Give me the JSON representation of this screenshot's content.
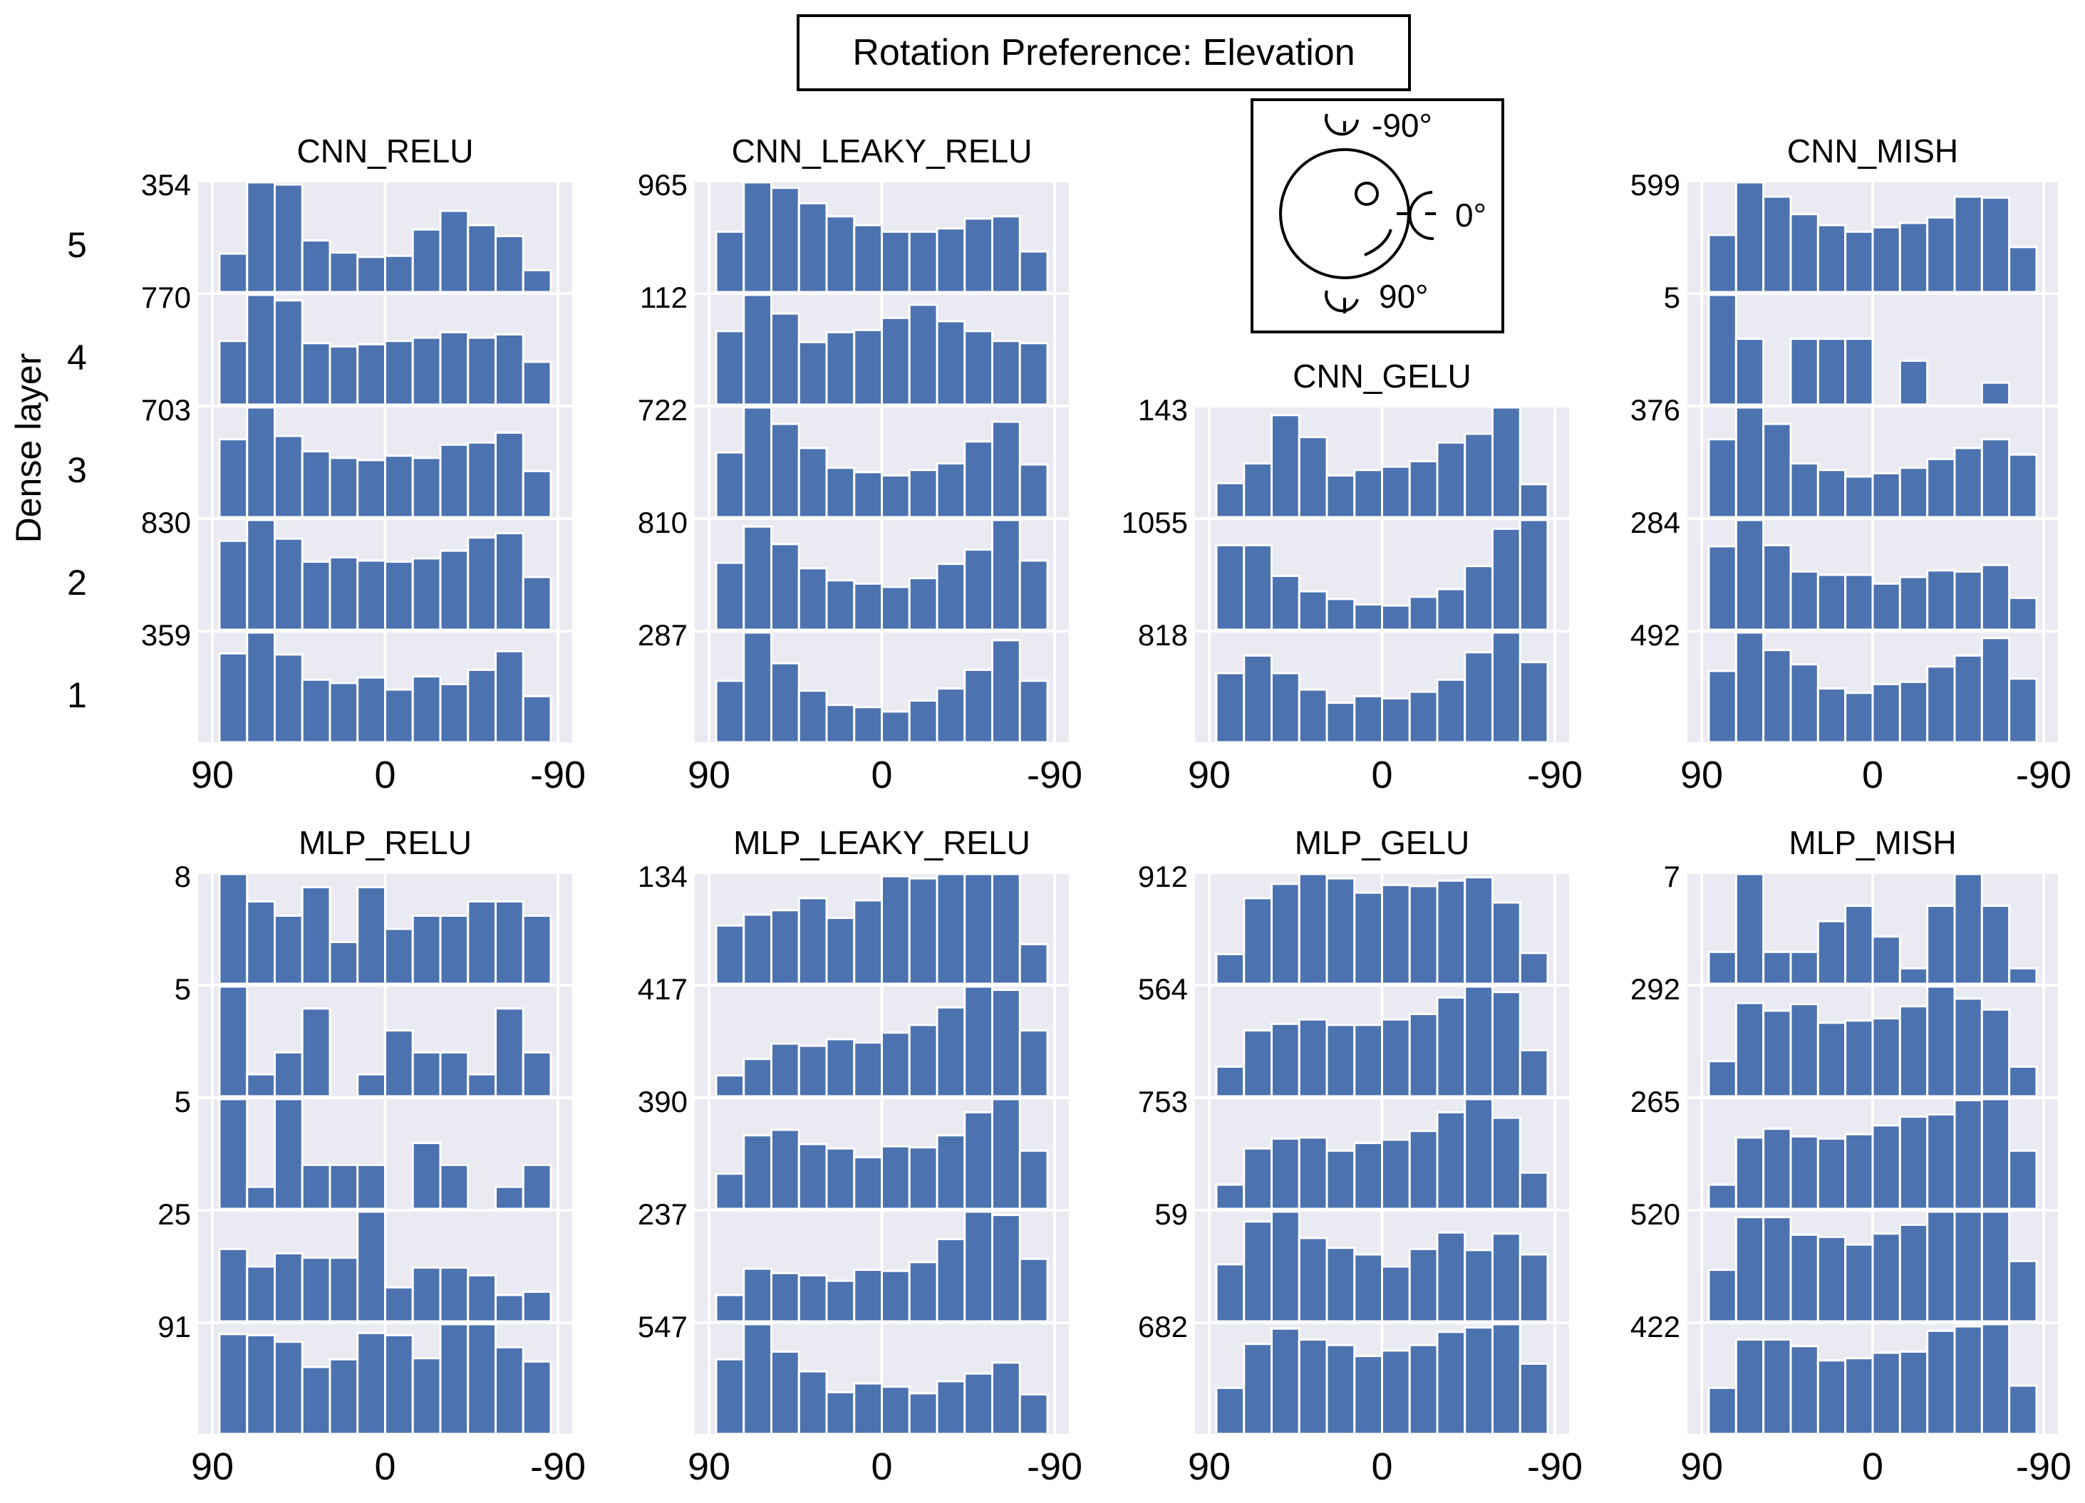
{
  "title": "Rotation Preference: Elevation",
  "y_axis_label": "Dense layer",
  "layer_labels": [
    "5",
    "4",
    "3",
    "2",
    "1"
  ],
  "x_ticks": [
    "90",
    "0",
    "-90"
  ],
  "inset": {
    "labels": [
      "-90°",
      "0°",
      "90°"
    ]
  },
  "colors": {
    "bar": "#4c72b0",
    "panel_bg": "#eaeaf2",
    "grid": "#ffffff"
  },
  "chart_data": [
    {
      "type": "bar",
      "title": "CNN_RELU",
      "xlim": [
        90,
        -90
      ],
      "tick_labels": [
        "354",
        "770",
        "703",
        "830",
        "359"
      ],
      "layers": [
        [
          0.35,
          1.0,
          0.98,
          0.47,
          0.36,
          0.32,
          0.33,
          0.57,
          0.74,
          0.61,
          0.51,
          0.2
        ],
        [
          0.58,
          1.0,
          0.95,
          0.56,
          0.53,
          0.55,
          0.58,
          0.61,
          0.66,
          0.61,
          0.64,
          0.39
        ],
        [
          0.71,
          1.0,
          0.74,
          0.6,
          0.54,
          0.52,
          0.56,
          0.54,
          0.66,
          0.68,
          0.77,
          0.42
        ],
        [
          0.81,
          1.0,
          0.83,
          0.62,
          0.66,
          0.63,
          0.62,
          0.65,
          0.72,
          0.84,
          0.88,
          0.48
        ],
        [
          0.81,
          1.0,
          0.8,
          0.57,
          0.54,
          0.59,
          0.48,
          0.6,
          0.53,
          0.66,
          0.83,
          0.42
        ]
      ]
    },
    {
      "type": "bar",
      "title": "CNN_LEAKY_RELU",
      "xlim": [
        90,
        -90
      ],
      "tick_labels": [
        "965",
        "112",
        "722",
        "810",
        "287"
      ],
      "layers": [
        [
          0.55,
          1.0,
          0.95,
          0.81,
          0.69,
          0.61,
          0.55,
          0.55,
          0.58,
          0.67,
          0.69,
          0.37
        ],
        [
          0.67,
          1.0,
          0.83,
          0.57,
          0.66,
          0.68,
          0.79,
          0.91,
          0.76,
          0.67,
          0.58,
          0.56
        ],
        [
          0.59,
          1.0,
          0.85,
          0.63,
          0.45,
          0.41,
          0.38,
          0.43,
          0.49,
          0.69,
          0.87,
          0.48
        ],
        [
          0.61,
          0.94,
          0.78,
          0.56,
          0.45,
          0.42,
          0.39,
          0.47,
          0.6,
          0.73,
          1.0,
          0.63
        ],
        [
          0.56,
          1.0,
          0.72,
          0.47,
          0.34,
          0.32,
          0.28,
          0.38,
          0.49,
          0.66,
          0.93,
          0.56
        ]
      ]
    },
    {
      "type": "bar",
      "title": "CNN_GELU",
      "xlim": [
        90,
        -90
      ],
      "tick_labels": [
        "143",
        "1055",
        "818"
      ],
      "layers": [
        [
          0.31,
          0.49,
          0.93,
          0.73,
          0.38,
          0.43,
          0.46,
          0.51,
          0.68,
          0.76,
          1.0,
          0.3
        ],
        [
          0.77,
          0.77,
          0.49,
          0.35,
          0.28,
          0.23,
          0.22,
          0.3,
          0.37,
          0.58,
          0.92,
          1.0
        ],
        [
          0.63,
          0.79,
          0.63,
          0.48,
          0.36,
          0.42,
          0.4,
          0.46,
          0.57,
          0.82,
          1.0,
          0.73
        ]
      ]
    },
    {
      "type": "bar",
      "title": "CNN_MISH",
      "xlim": [
        90,
        -90
      ],
      "tick_labels": [
        "599",
        "5",
        "376",
        "284",
        "492"
      ],
      "layers": [
        [
          0.52,
          1.0,
          0.87,
          0.71,
          0.61,
          0.55,
          0.59,
          0.63,
          0.68,
          0.87,
          0.86,
          0.41
        ],
        [
          1.0,
          0.6,
          0.0,
          0.6,
          0.6,
          0.6,
          0.0,
          0.4,
          0.0,
          0.0,
          0.2,
          0.0
        ],
        [
          0.71,
          1.0,
          0.85,
          0.49,
          0.43,
          0.37,
          0.4,
          0.45,
          0.53,
          0.63,
          0.71,
          0.57
        ],
        [
          0.76,
          1.0,
          0.77,
          0.53,
          0.5,
          0.5,
          0.42,
          0.48,
          0.54,
          0.53,
          0.59,
          0.29
        ],
        [
          0.65,
          1.0,
          0.84,
          0.71,
          0.49,
          0.45,
          0.53,
          0.55,
          0.69,
          0.79,
          0.95,
          0.58
        ]
      ]
    },
    {
      "type": "bar",
      "title": "MLP_RELU",
      "xlim": [
        90,
        -90
      ],
      "tick_labels": [
        "8",
        "5",
        "5",
        "25",
        "91"
      ],
      "layers": [
        [
          1.0,
          0.75,
          0.62,
          0.88,
          0.38,
          0.88,
          0.5,
          0.62,
          0.62,
          0.75,
          0.75,
          0.62
        ],
        [
          1.0,
          0.2,
          0.4,
          0.8,
          0.0,
          0.2,
          0.6,
          0.4,
          0.4,
          0.2,
          0.8,
          0.4
        ],
        [
          1.0,
          0.2,
          1.0,
          0.4,
          0.4,
          0.4,
          0.0,
          0.6,
          0.4,
          0.0,
          0.2,
          0.4
        ],
        [
          0.66,
          0.5,
          0.62,
          0.58,
          0.58,
          1.0,
          0.31,
          0.49,
          0.49,
          0.42,
          0.24,
          0.27
        ],
        [
          0.91,
          0.9,
          0.84,
          0.61,
          0.68,
          0.92,
          0.9,
          0.69,
          1.0,
          1.0,
          0.79,
          0.66
        ]
      ]
    },
    {
      "type": "bar",
      "title": "MLP_LEAKY_RELU",
      "xlim": [
        90,
        -90
      ],
      "tick_labels": [
        "134",
        "417",
        "390",
        "237",
        "547"
      ],
      "layers": [
        [
          0.53,
          0.63,
          0.67,
          0.78,
          0.6,
          0.76,
          0.98,
          0.96,
          1.0,
          1.0,
          1.0,
          0.36
        ],
        [
          0.19,
          0.34,
          0.48,
          0.46,
          0.52,
          0.49,
          0.58,
          0.65,
          0.81,
          1.0,
          0.97,
          0.6
        ],
        [
          0.32,
          0.67,
          0.72,
          0.59,
          0.55,
          0.47,
          0.57,
          0.56,
          0.67,
          0.88,
          1.0,
          0.53
        ],
        [
          0.24,
          0.48,
          0.44,
          0.42,
          0.37,
          0.47,
          0.46,
          0.54,
          0.75,
          1.0,
          0.97,
          0.57
        ],
        [
          0.68,
          1.0,
          0.75,
          0.57,
          0.38,
          0.46,
          0.43,
          0.37,
          0.48,
          0.55,
          0.65,
          0.36
        ]
      ]
    },
    {
      "type": "bar",
      "title": "MLP_GELU",
      "xlim": [
        90,
        -90
      ],
      "tick_labels": [
        "912",
        "564",
        "753",
        "59",
        "682"
      ],
      "layers": [
        [
          0.27,
          0.78,
          0.91,
          1.0,
          0.96,
          0.83,
          0.9,
          0.89,
          0.94,
          0.97,
          0.74,
          0.28
        ],
        [
          0.27,
          0.6,
          0.66,
          0.7,
          0.65,
          0.65,
          0.7,
          0.75,
          0.9,
          1.0,
          0.95,
          0.42
        ],
        [
          0.22,
          0.55,
          0.64,
          0.65,
          0.53,
          0.6,
          0.63,
          0.71,
          0.88,
          1.0,
          0.83,
          0.33
        ],
        [
          0.52,
          0.91,
          1.0,
          0.76,
          0.67,
          0.61,
          0.5,
          0.66,
          0.81,
          0.65,
          0.8,
          0.61
        ],
        [
          0.42,
          0.82,
          0.96,
          0.86,
          0.81,
          0.71,
          0.76,
          0.81,
          0.93,
          0.97,
          1.0,
          0.64
        ]
      ]
    },
    {
      "type": "bar",
      "title": "MLP_MISH",
      "xlim": [
        90,
        -90
      ],
      "tick_labels": [
        "7",
        "292",
        "265",
        "520",
        "422"
      ],
      "layers": [
        [
          0.29,
          1.0,
          0.29,
          0.29,
          0.57,
          0.71,
          0.43,
          0.14,
          0.71,
          1.0,
          0.71,
          0.14
        ],
        [
          0.32,
          0.85,
          0.78,
          0.84,
          0.67,
          0.69,
          0.71,
          0.82,
          1.0,
          0.89,
          0.79,
          0.27
        ],
        [
          0.22,
          0.65,
          0.73,
          0.66,
          0.64,
          0.68,
          0.76,
          0.84,
          0.86,
          0.99,
          1.0,
          0.53
        ],
        [
          0.47,
          0.95,
          0.95,
          0.79,
          0.77,
          0.7,
          0.8,
          0.88,
          1.0,
          1.0,
          1.0,
          0.55
        ],
        [
          0.42,
          0.86,
          0.86,
          0.8,
          0.67,
          0.69,
          0.74,
          0.75,
          0.94,
          0.98,
          1.0,
          0.44
        ]
      ]
    }
  ]
}
